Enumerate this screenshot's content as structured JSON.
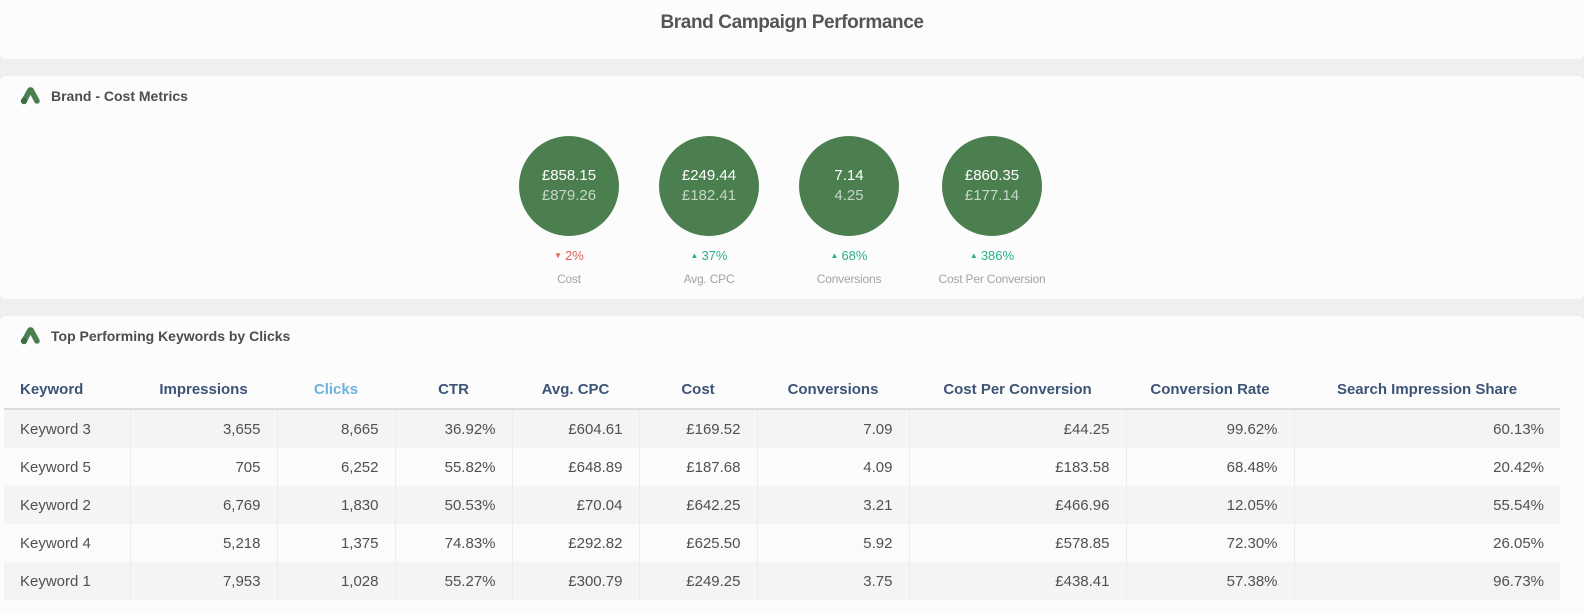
{
  "header": {
    "title": "Brand Campaign Performance"
  },
  "metrics_section": {
    "title": "Brand - Cost Metrics",
    "icon": "google-ads-icon",
    "accent_color": "#4c7f50",
    "up_color": "#2ab08f",
    "down_color": "#e0635a",
    "items": [
      {
        "current": "£858.15",
        "previous": "£879.26",
        "change": "2%",
        "direction": "down",
        "label": "Cost"
      },
      {
        "current": "£249.44",
        "previous": "£182.41",
        "change": "37%",
        "direction": "up",
        "label": "Avg. CPC"
      },
      {
        "current": "7.14",
        "previous": "4.25",
        "change": "68%",
        "direction": "up",
        "label": "Conversions"
      },
      {
        "current": "£860.35",
        "previous": "£177.14",
        "change": "386%",
        "direction": "up",
        "label": "Cost Per Conversion"
      }
    ]
  },
  "keywords_section": {
    "title": "Top Performing Keywords by Clicks",
    "icon": "google-ads-icon",
    "columns": [
      "Keyword",
      "Impressions",
      "Clicks",
      "CTR",
      "Avg. CPC",
      "Cost",
      "Conversions",
      "Cost Per Conversion",
      "Conversion Rate",
      "Search Impression Share"
    ],
    "sorted_column": "Clicks",
    "rows": [
      [
        "Keyword 3",
        "3,655",
        "8,665",
        "36.92%",
        "£604.61",
        "£169.52",
        "7.09",
        "£44.25",
        "99.62%",
        "60.13%"
      ],
      [
        "Keyword 5",
        "705",
        "6,252",
        "55.82%",
        "£648.89",
        "£187.68",
        "4.09",
        "£183.58",
        "68.48%",
        "20.42%"
      ],
      [
        "Keyword 2",
        "6,769",
        "1,830",
        "50.53%",
        "£70.04",
        "£642.25",
        "3.21",
        "£466.96",
        "12.05%",
        "55.54%"
      ],
      [
        "Keyword 4",
        "5,218",
        "1,375",
        "74.83%",
        "£292.82",
        "£625.50",
        "5.92",
        "£578.85",
        "72.30%",
        "26.05%"
      ],
      [
        "Keyword 1",
        "7,953",
        "1,028",
        "55.27%",
        "£300.79",
        "£249.25",
        "3.75",
        "£438.41",
        "57.38%",
        "96.73%"
      ]
    ]
  }
}
